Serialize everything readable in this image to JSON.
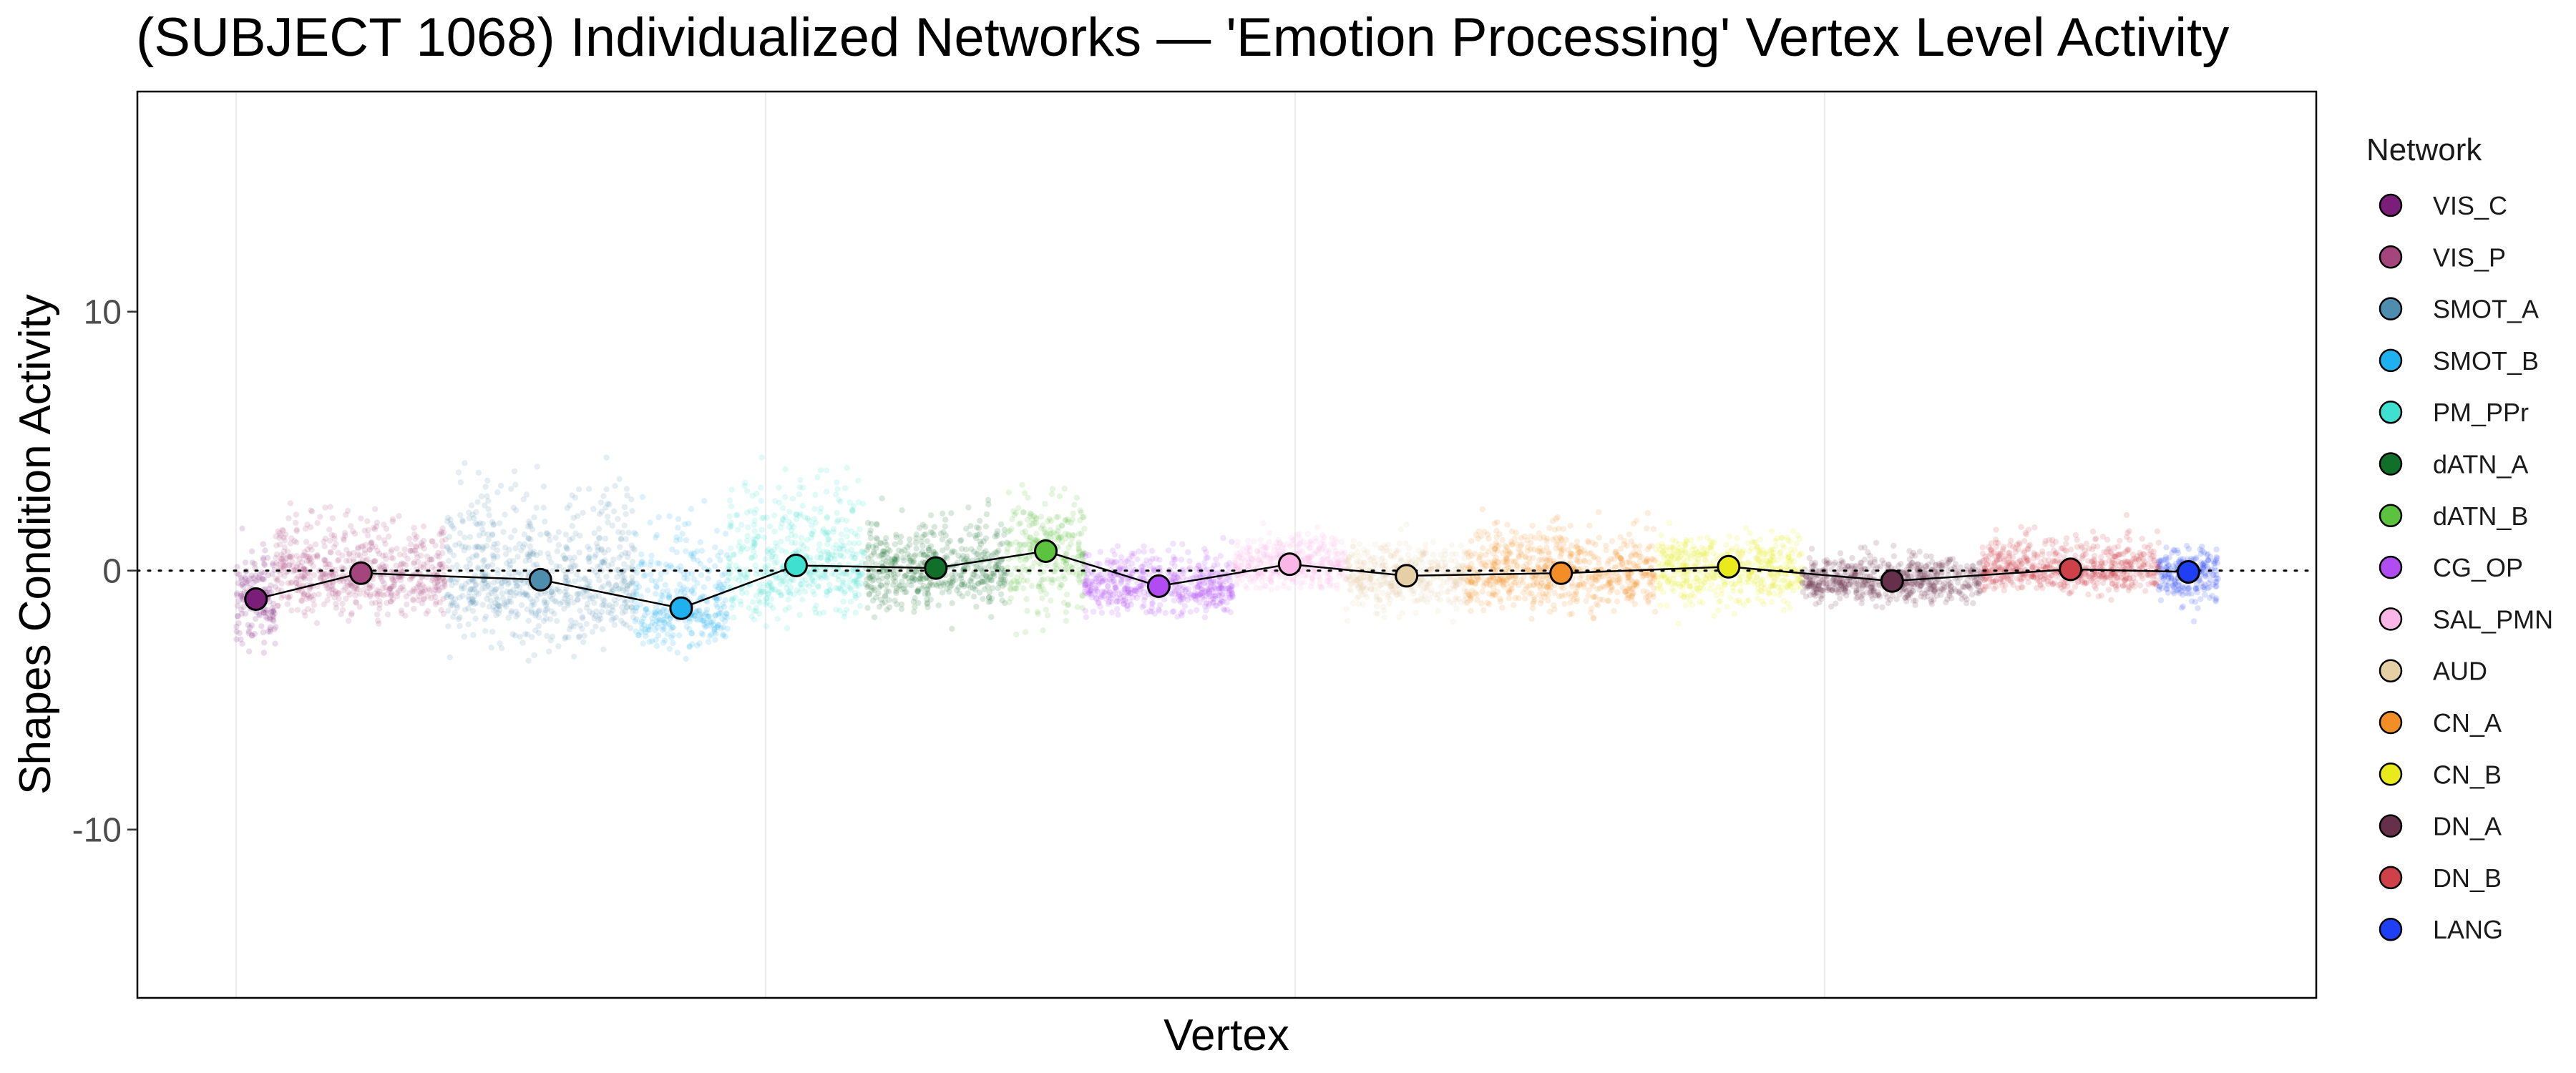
{
  "chart_data": {
    "type": "scatter",
    "title": "(SUBJECT 1068) Individualized Networks — 'Emotion Processing' Vertex Level Activity",
    "xlabel": "Vertex",
    "ylabel": "Shapes Condition Activity",
    "ylim": [
      -16.5,
      18.5
    ],
    "y_ticks": [
      -10,
      0,
      10
    ],
    "y_tick_labels": [
      "-10",
      "0",
      "10"
    ],
    "x_axis_ticks_shown": false,
    "reference_line_y": 0,
    "legend": {
      "title": "Network",
      "position": "right"
    },
    "grid": "major vertical gridlines only",
    "series": [
      {
        "name": "VIS_C",
        "color": "#7B1E7A",
        "x_range": [
          0.0,
          0.02
        ],
        "mean": -1.1,
        "low": -4.5,
        "high": 2.6
      },
      {
        "name": "VIS_P",
        "color": "#A5457E",
        "x_range": [
          0.02,
          0.106
        ],
        "mean": -0.1,
        "low": -2.8,
        "high": 3.6
      },
      {
        "name": "SMOT_A",
        "color": "#4E8DAE",
        "x_range": [
          0.106,
          0.201
        ],
        "mean": -0.35,
        "low": -4.4,
        "high": 6.5
      },
      {
        "name": "SMOT_B",
        "color": "#1FB0EF",
        "x_range": [
          0.201,
          0.248
        ],
        "mean": -1.45,
        "low": -4.1,
        "high": 4.8
      },
      {
        "name": "PM_PPr",
        "color": "#3FE0D0",
        "x_range": [
          0.248,
          0.317
        ],
        "mean": 0.2,
        "low": -3.2,
        "high": 6.2
      },
      {
        "name": "dATN_A",
        "color": "#10702A",
        "x_range": [
          0.317,
          0.389
        ],
        "mean": 0.1,
        "low": -2.6,
        "high": 3.9
      },
      {
        "name": "dATN_B",
        "color": "#5CC33E",
        "x_range": [
          0.389,
          0.428
        ],
        "mean": 0.75,
        "low": -3.6,
        "high": 4.5
      },
      {
        "name": "CG_OP",
        "color": "#B14CF3",
        "x_range": [
          0.428,
          0.503
        ],
        "mean": -0.6,
        "low": -2.3,
        "high": 2.0
      },
      {
        "name": "SAL_PMN",
        "color": "#FBB6E8",
        "x_range": [
          0.503,
          0.56
        ],
        "mean": 0.25,
        "low": -1.3,
        "high": 2.3
      },
      {
        "name": "AUD",
        "color": "#E5D0A6",
        "x_range": [
          0.56,
          0.621
        ],
        "mean": -0.2,
        "low": -2.4,
        "high": 2.1
      },
      {
        "name": "CN_A",
        "color": "#F28E25",
        "x_range": [
          0.621,
          0.716
        ],
        "mean": -0.1,
        "low": -2.5,
        "high": 3.3
      },
      {
        "name": "CN_B",
        "color": "#E8EA1B",
        "x_range": [
          0.716,
          0.79
        ],
        "mean": 0.15,
        "low": -2.4,
        "high": 2.3
      },
      {
        "name": "DN_A",
        "color": "#67304A",
        "x_range": [
          0.79,
          0.881
        ],
        "mean": -0.4,
        "low": -1.8,
        "high": 1.4
      },
      {
        "name": "DN_B",
        "color": "#CF4149",
        "x_range": [
          0.881,
          0.97
        ],
        "mean": 0.05,
        "low": -1.4,
        "high": 2.3
      },
      {
        "name": "LANG",
        "color": "#1F3FF5",
        "x_range": [
          0.97,
          1.0
        ],
        "mean": -0.05,
        "low": -2.3,
        "high": 1.7
      }
    ]
  }
}
